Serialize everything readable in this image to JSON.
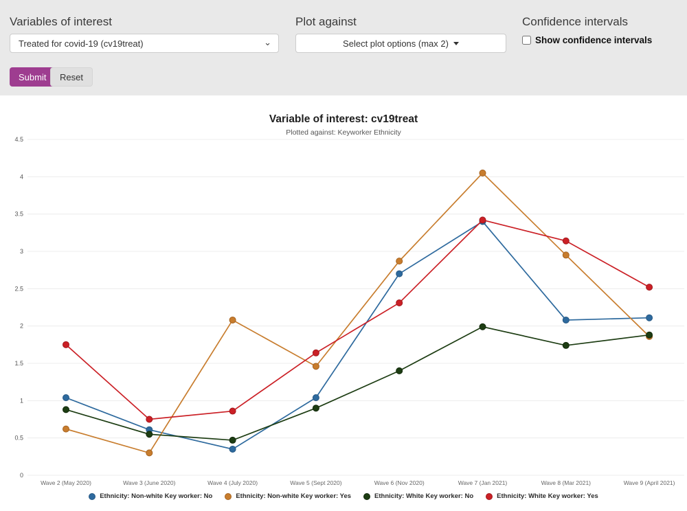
{
  "controls": {
    "variables": {
      "label": "Variables of interest",
      "selected": "Treated for covid-19 (cv19treat)",
      "chevron": "⌄"
    },
    "plot_against": {
      "label": "Plot against",
      "button_label": "Select plot options (max 2)"
    },
    "confidence": {
      "label": "Confidence intervals",
      "checkbox_label": "Show confidence intervals",
      "checked": false
    },
    "submit_label": "Submit",
    "reset_label": "Reset"
  },
  "chart": {
    "title": "Variable of interest: cv19treat",
    "subtitle": "Plotted against: Keyworker Ethnicity"
  },
  "chart_data": {
    "type": "line",
    "title": "Variable of interest: cv19treat",
    "subtitle": "Plotted against: Keyworker Ethnicity",
    "categories": [
      "Wave 2 (May 2020)",
      "Wave 3 (June 2020)",
      "Wave 4 (July 2020)",
      "Wave 5 (Sept 2020)",
      "Wave 6 (Nov 2020)",
      "Wave 7 (Jan 2021)",
      "Wave 8 (Mar 2021)",
      "Wave 9 (April 2021)"
    ],
    "series": [
      {
        "name": "Ethnicity: Non-white Key worker: No",
        "color": "#2e6a9e",
        "stroke": "#265884",
        "values": [
          1.04,
          0.61,
          0.35,
          1.04,
          2.7,
          3.4,
          2.08,
          2.11
        ]
      },
      {
        "name": "Ethnicity: Non-white Key worker: Yes",
        "color": "#c87d2e",
        "stroke": "#a66320",
        "values": [
          0.62,
          0.3,
          2.08,
          1.46,
          2.87,
          4.05,
          2.95,
          1.86
        ]
      },
      {
        "name": "Ethnicity: White Key worker: No",
        "color": "#1d3d13",
        "stroke": "#12290b",
        "values": [
          0.88,
          0.55,
          0.47,
          0.9,
          1.4,
          1.99,
          1.74,
          1.88
        ]
      },
      {
        "name": "Ethnicity: White Key worker: Yes",
        "color": "#cb2026",
        "stroke": "#a2181d",
        "values": [
          1.75,
          0.75,
          0.86,
          1.64,
          2.31,
          3.42,
          3.14,
          2.52
        ]
      }
    ],
    "ylim": [
      0,
      4.5
    ],
    "ytick_step": 0.5,
    "grid": true,
    "legend_position": "bottom"
  },
  "colors": {
    "accent": "#9e3d90",
    "topbar_bg": "#e9e9e9",
    "gridline": "#ececec"
  }
}
